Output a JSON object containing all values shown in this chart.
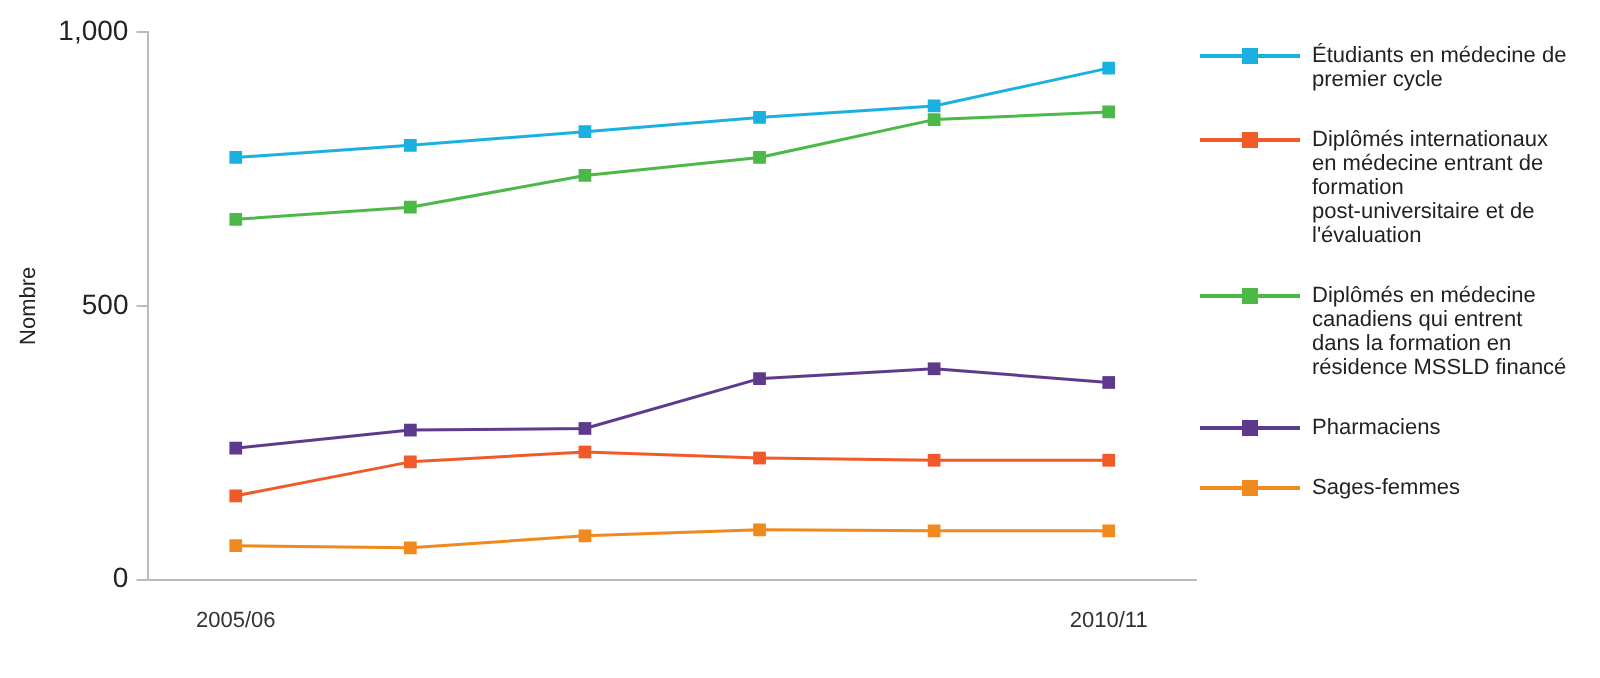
{
  "chart_data": {
    "type": "line",
    "ylabel": "Nombre",
    "categories": [
      "2005/06",
      null,
      null,
      null,
      null,
      "2010/11"
    ],
    "ylim": [
      0,
      1000
    ],
    "yticks": [
      0,
      500,
      {
        "value": 1000,
        "label": "1,000"
      }
    ],
    "grid": false,
    "legend": "right",
    "marker": "square",
    "line_style": "solid",
    "series": [
      {
        "name": "Étudiants en médecine de premier cycle",
        "color": "#1ab0e0",
        "values": [
          771,
          793,
          818,
          844,
          865,
          934
        ]
      },
      {
        "name": "Diplômés internationaux en médecine entrant de formation post-universitaire et de l'évaluation",
        "color": "#f05a28",
        "values": [
          153,
          215,
          233,
          222,
          218,
          218
        ]
      },
      {
        "name": "Diplômés en médecine canadiens qui entrent dans la formation en résidence MSSLD financé",
        "color": "#4cb848",
        "values": [
          658,
          680,
          738,
          771,
          840,
          854
        ]
      },
      {
        "name": "Pharmaciens",
        "color": "#5e3a8c",
        "values": [
          240,
          273,
          276,
          367,
          385,
          360
        ]
      },
      {
        "name": "Sages-femmes",
        "color": "#f08a1e",
        "values": [
          62,
          58,
          80,
          91,
          89,
          89
        ]
      }
    ]
  }
}
